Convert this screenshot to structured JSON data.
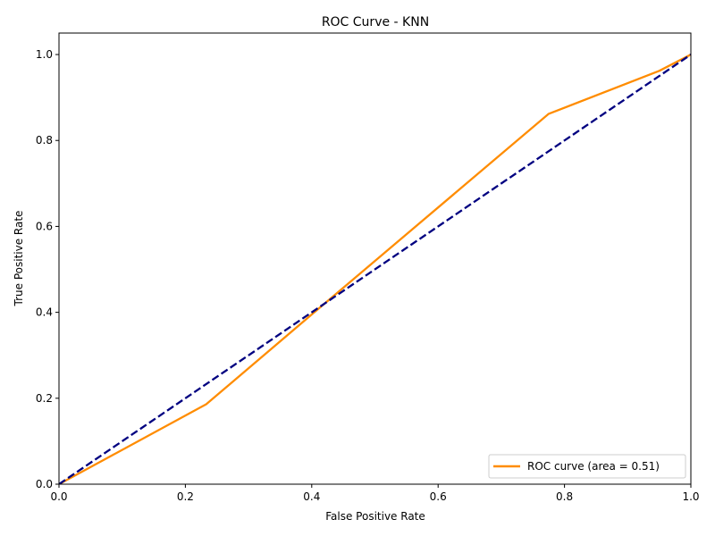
{
  "chart_data": {
    "type": "line",
    "title": "ROC Curve - KNN",
    "xlabel": "False Positive Rate",
    "ylabel": "True Positive Rate",
    "xlim": [
      0.0,
      1.0
    ],
    "ylim": [
      0.0,
      1.05
    ],
    "xticks": [
      0.0,
      0.2,
      0.4,
      0.6,
      0.8,
      1.0
    ],
    "yticks": [
      0.0,
      0.2,
      0.4,
      0.6,
      0.8,
      1.0
    ],
    "xtick_labels": [
      "0.0",
      "0.2",
      "0.4",
      "0.6",
      "0.8",
      "1.0"
    ],
    "ytick_labels": [
      "0.0",
      "0.2",
      "0.4",
      "0.6",
      "0.8",
      "1.0"
    ],
    "grid": false,
    "legend_position": "lower-right",
    "series": [
      {
        "name": "ROC curve (area = 0.51)",
        "color": "#ff8c00",
        "style": "solid",
        "x": [
          0.0,
          0.233,
          0.4,
          0.775,
          0.95,
          1.0
        ],
        "y": [
          0.0,
          0.186,
          0.395,
          0.862,
          0.962,
          1.0
        ]
      },
      {
        "name": "",
        "color": "#000080",
        "style": "dashed",
        "x": [
          0.0,
          1.0
        ],
        "y": [
          0.0,
          1.0
        ]
      }
    ]
  }
}
